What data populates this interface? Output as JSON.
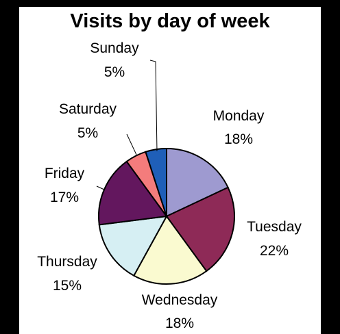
{
  "chart_data": {
    "type": "pie",
    "title": "Visits by day of week",
    "start_angle_deg": 0,
    "direction": "clockwise",
    "slices": [
      {
        "label": "Monday",
        "value": 18,
        "value_label": "18%",
        "color": "#9e9ad0"
      },
      {
        "label": "Tuesday",
        "value": 22,
        "value_label": "22%",
        "color": "#8e2a57"
      },
      {
        "label": "Wednesday",
        "value": 18,
        "value_label": "18%",
        "color": "#fafad0"
      },
      {
        "label": "Thursday",
        "value": 15,
        "value_label": "15%",
        "color": "#d6eff3"
      },
      {
        "label": "Friday",
        "value": 17,
        "value_label": "17%",
        "color": "#63175e"
      },
      {
        "label": "Saturday",
        "value": 5,
        "value_label": "5%",
        "color": "#f47c7c"
      },
      {
        "label": "Sunday",
        "value": 5,
        "value_label": "5%",
        "color": "#1f5fb8"
      }
    ]
  }
}
